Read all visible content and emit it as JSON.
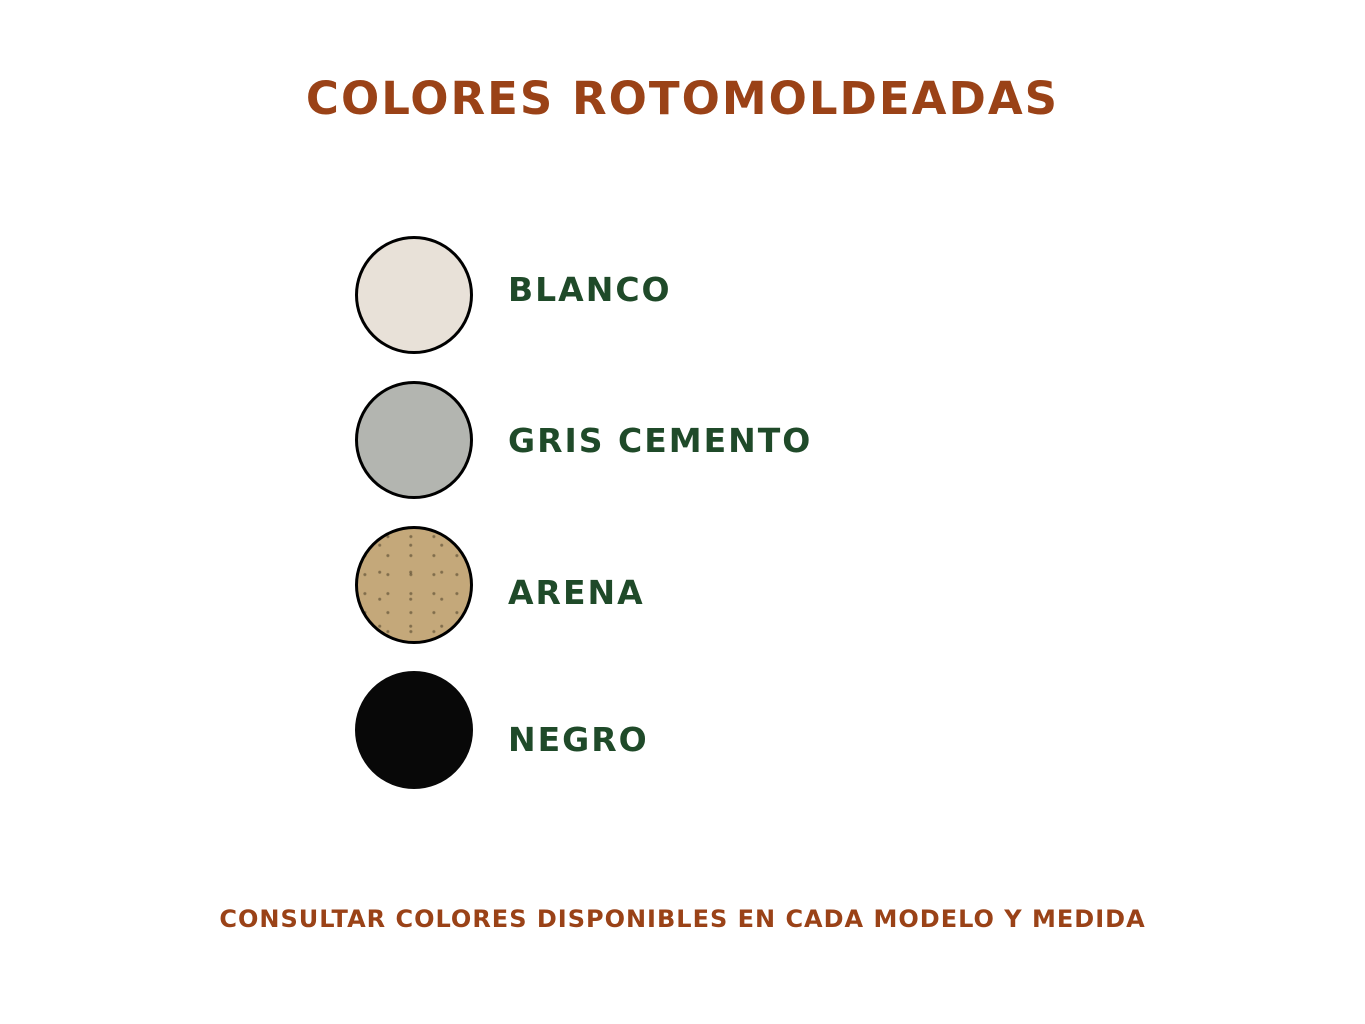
{
  "title": "COLORES ROTOMOLDEADAS",
  "colors": {
    "title": "#9a4217",
    "label": "#1f4a29"
  },
  "swatches": [
    {
      "label": "BLANCO",
      "color": "#e8e1d8"
    },
    {
      "label": "GRIS CEMENTO",
      "color": "#b3b5b0"
    },
    {
      "label": "ARENA",
      "color": "#c4a87a"
    },
    {
      "label": "NEGRO",
      "color": "#080808"
    }
  ],
  "footer": "CONSULTAR COLORES DISPONIBLES EN CADA MODELO Y MEDIDA"
}
